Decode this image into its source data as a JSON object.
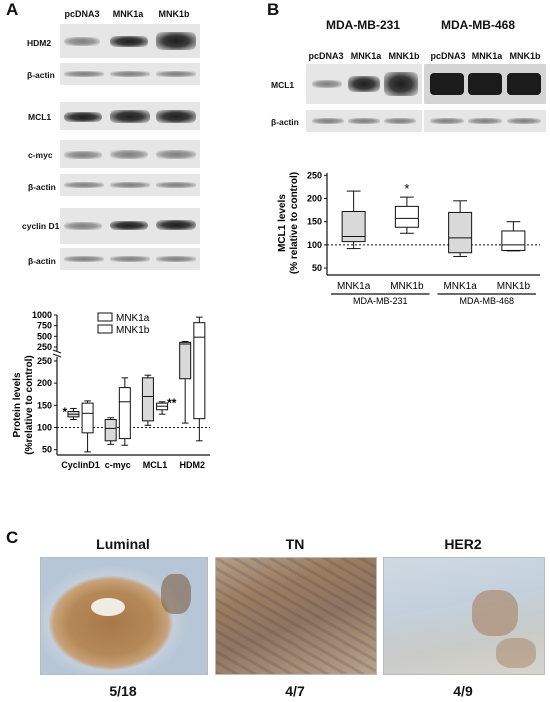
{
  "panel_a": {
    "letter": "A",
    "lanes": [
      "pcDNA3",
      "MNK1a",
      "MNK1b"
    ],
    "rows": [
      "HDM2",
      "β-actin",
      "MCL1",
      "c-myc",
      "β-actin",
      "cyclin D1",
      "β-actin"
    ]
  },
  "panel_b": {
    "letter": "B",
    "cell_lines": [
      "MDA-MB-231",
      "MDA-MB-468"
    ],
    "lanes": [
      "pcDNA3",
      "MNK1a",
      "MNK1b"
    ],
    "rows": [
      "MCL1",
      "β-actin"
    ]
  },
  "panel_c": {
    "letter": "C",
    "subtypes": [
      "Luminal",
      "TN",
      "HER2"
    ],
    "fractions": [
      "5/18",
      "4/7",
      "4/9"
    ]
  },
  "colors": {
    "filled_box": "#d9d9d9",
    "open_box": "#ffffff",
    "stain_brown": "#9a6a3a",
    "counterstain_blue": "#b9c7d8"
  },
  "chart_data": [
    {
      "type": "box",
      "panel": "A",
      "ylabel": "Protein levels\n(%relative to control)",
      "yticks_upper": [
        "250",
        "500",
        "750",
        "1000"
      ],
      "yticks_lower": [
        "50",
        "100",
        "150",
        "200",
        "250"
      ],
      "reference_line": 100,
      "categories": [
        "CyclinD1",
        "c-myc",
        "MCL1",
        "HDM2"
      ],
      "legend": [
        "MNK1a",
        "MNK1b"
      ],
      "annotations": [
        "*",
        "**"
      ],
      "series": [
        {
          "name": "MNK1a",
          "boxes": [
            {
              "min": 118,
              "q1": 124,
              "median": 130,
              "q3": 136,
              "max": 143
            },
            {
              "min": 62,
              "q1": 70,
              "median": 98,
              "q3": 118,
              "max": 122
            },
            {
              "min": 105,
              "q1": 115,
              "median": 170,
              "q3": 212,
              "max": 218
            },
            {
              "min": 110,
              "q1": 210,
              "median": 320,
              "q3": 360,
              "max": 380
            }
          ]
        },
        {
          "name": "MNK1b",
          "boxes": [
            {
              "min": 45,
              "q1": 88,
              "median": 132,
              "q3": 155,
              "max": 160
            },
            {
              "min": 60,
              "q1": 75,
              "median": 158,
              "q3": 190,
              "max": 212
            },
            {
              "min": 130,
              "q1": 140,
              "median": 148,
              "q3": 155,
              "max": 158
            },
            {
              "min": 70,
              "q1": 120,
              "median": 480,
              "q3": 820,
              "max": 950
            }
          ]
        }
      ]
    },
    {
      "type": "box",
      "panel": "B",
      "ylabel": "MCL1 levels\n(% relative to control)",
      "yticks": [
        "50",
        "100",
        "150",
        "200",
        "250"
      ],
      "ylim": [
        35,
        255
      ],
      "reference_line": 100,
      "categories": [
        "MNK1a",
        "MNK1b",
        "MNK1a",
        "MNK1b"
      ],
      "groups": [
        "MDA-MB-231",
        "MDA-MB-468"
      ],
      "annotations": [
        "*"
      ],
      "boxes": [
        {
          "min": 92,
          "q1": 107,
          "median": 118,
          "q3": 172,
          "max": 216,
          "fill": "filled"
        },
        {
          "min": 125,
          "q1": 138,
          "median": 157,
          "q3": 183,
          "max": 203,
          "fill": "open"
        },
        {
          "min": 75,
          "q1": 83,
          "median": 115,
          "q3": 170,
          "max": 195,
          "fill": "filled"
        },
        {
          "min": 87,
          "q1": 88,
          "median": 100,
          "q3": 130,
          "max": 150,
          "fill": "open"
        }
      ]
    }
  ]
}
